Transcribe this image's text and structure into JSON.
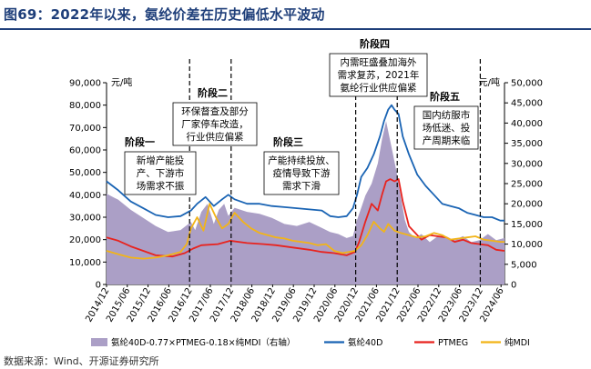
{
  "header": {
    "title": "图69：2022年以来，氨纶价差在历史偏低水平波动",
    "source": "数据来源：Wind、开源证券研究所"
  },
  "chart_data": {
    "type": "line",
    "left_unit": "元/吨",
    "right_unit": "元/吨",
    "ylim_left": [
      0,
      90000
    ],
    "ylim_right": [
      0,
      50000
    ],
    "left_ticks": [
      "0",
      "10,000",
      "20,000",
      "30,000",
      "40,000",
      "50,000",
      "60,000",
      "70,000",
      "80,000",
      "90,000"
    ],
    "right_ticks": [
      "0",
      "5,000",
      "10,000",
      "15,000",
      "20,000",
      "25,000",
      "30,000",
      "35,000",
      "40,000",
      "45,000",
      "50,000"
    ],
    "x_range": [
      2014.917,
      2024.5
    ],
    "x_labels": [
      "2014/12",
      "2015/06",
      "2015/12",
      "2016/06",
      "2016/12",
      "2017/06",
      "2017/12",
      "2018/06",
      "2018/12",
      "2019/06",
      "2019/12",
      "2020/06",
      "2020/12",
      "2021/06",
      "2021/12",
      "2022/06",
      "2022/12",
      "2023/06",
      "2023/12",
      "2024/06"
    ],
    "series": [
      {
        "name": "氨纶40D-0.77×PTMEG-0.18×纯MDI（右轴）",
        "axis": "right",
        "kind": "area",
        "color": "#ab9fc6",
        "x": [
          2014.917,
          2015.2,
          2015.5,
          2015.8,
          2016.1,
          2016.4,
          2016.7,
          2016.95,
          2017.05,
          2017.2,
          2017.35,
          2017.5,
          2017.62,
          2017.75,
          2017.85,
          2018.0,
          2018.3,
          2018.6,
          2018.9,
          2019.2,
          2019.5,
          2019.8,
          2020.1,
          2020.3,
          2020.5,
          2020.7,
          2020.85,
          2020.95,
          2021.05,
          2021.15,
          2021.3,
          2021.45,
          2021.55,
          2021.65,
          2021.72,
          2021.8,
          2021.9,
          2022.0,
          2022.1,
          2022.2,
          2022.35,
          2022.5,
          2022.7,
          2022.9,
          2023.1,
          2023.3,
          2023.5,
          2023.7,
          2023.9,
          2024.1,
          2024.3,
          2024.5
        ],
        "values": [
          22500,
          21000,
          18500,
          16500,
          14500,
          13000,
          13500,
          15500,
          13500,
          18000,
          20000,
          15000,
          18500,
          20000,
          17000,
          19000,
          18000,
          17500,
          16500,
          15000,
          14500,
          15500,
          14000,
          13000,
          12500,
          11500,
          12000,
          16000,
          19000,
          22000,
          25000,
          30000,
          36000,
          40500,
          37000,
          33000,
          28000,
          22000,
          16000,
          13000,
          11500,
          12500,
          10500,
          12000,
          11500,
          11000,
          12000,
          10500,
          11000,
          12500,
          11000,
          11500
        ]
      },
      {
        "name": "氨纶40D",
        "axis": "left",
        "kind": "line",
        "color": "#1a64b4",
        "x": [
          2014.917,
          2015.2,
          2015.5,
          2015.8,
          2016.1,
          2016.4,
          2016.7,
          2016.95,
          2017.1,
          2017.3,
          2017.5,
          2017.7,
          2017.85,
          2018.0,
          2018.3,
          2018.6,
          2018.9,
          2019.2,
          2019.5,
          2019.8,
          2020.1,
          2020.3,
          2020.5,
          2020.7,
          2020.85,
          2020.95,
          2021.05,
          2021.2,
          2021.35,
          2021.5,
          2021.6,
          2021.7,
          2021.78,
          2021.85,
          2021.95,
          2022.05,
          2022.2,
          2022.4,
          2022.6,
          2022.8,
          2023.0,
          2023.2,
          2023.4,
          2023.6,
          2023.8,
          2024.0,
          2024.2,
          2024.4,
          2024.5
        ],
        "values": [
          46000,
          42000,
          37000,
          34000,
          31000,
          30000,
          30500,
          33000,
          36000,
          39000,
          35000,
          38000,
          40000,
          38000,
          36000,
          36000,
          35000,
          34500,
          34000,
          33500,
          33000,
          30500,
          30000,
          30500,
          34000,
          40000,
          48000,
          52000,
          58000,
          66000,
          73000,
          78000,
          80000,
          78000,
          76000,
          66000,
          58000,
          49000,
          44000,
          40000,
          36000,
          35000,
          34000,
          32000,
          31000,
          30000,
          30000,
          28500,
          28500
        ]
      },
      {
        "name": "PTMEG",
        "axis": "left",
        "kind": "line",
        "color": "#e8231e",
        "x": [
          2014.917,
          2015.2,
          2015.5,
          2015.8,
          2016.1,
          2016.5,
          2016.8,
          2017.0,
          2017.2,
          2017.6,
          2017.9,
          2018.3,
          2018.7,
          2019.0,
          2019.4,
          2019.8,
          2020.1,
          2020.4,
          2020.7,
          2020.9,
          2021.0,
          2021.15,
          2021.3,
          2021.45,
          2021.55,
          2021.65,
          2021.75,
          2021.85,
          2021.95,
          2022.05,
          2022.2,
          2022.35,
          2022.5,
          2022.7,
          2022.9,
          2023.1,
          2023.3,
          2023.5,
          2023.7,
          2023.9,
          2024.1,
          2024.3,
          2024.5
        ],
        "values": [
          21000,
          19500,
          17000,
          15000,
          13000,
          12500,
          14000,
          16000,
          17500,
          18000,
          19500,
          18500,
          18000,
          17500,
          16500,
          15500,
          14500,
          14000,
          13000,
          14500,
          19000,
          28000,
          36000,
          33000,
          40000,
          46000,
          47000,
          46000,
          47000,
          37000,
          26000,
          23000,
          20000,
          22000,
          21500,
          21000,
          19000,
          20000,
          18500,
          18000,
          17500,
          15500,
          15000
        ]
      },
      {
        "name": "纯MDI",
        "axis": "left",
        "kind": "line",
        "color": "#f2b418",
        "x": [
          2014.917,
          2015.2,
          2015.5,
          2015.8,
          2016.1,
          2016.4,
          2016.7,
          2016.85,
          2016.95,
          2017.1,
          2017.25,
          2017.4,
          2017.55,
          2017.7,
          2017.85,
          2018.0,
          2018.2,
          2018.4,
          2018.6,
          2018.8,
          2019.0,
          2019.2,
          2019.4,
          2019.6,
          2019.8,
          2020.0,
          2020.2,
          2020.4,
          2020.6,
          2020.75,
          2020.9,
          2021.05,
          2021.2,
          2021.35,
          2021.5,
          2021.6,
          2021.7,
          2021.85,
          2022.0,
          2022.2,
          2022.4,
          2022.6,
          2022.8,
          2023.0,
          2023.2,
          2023.4,
          2023.6,
          2023.8,
          2024.0,
          2024.2,
          2024.4,
          2024.5
        ],
        "values": [
          15000,
          13500,
          12000,
          11500,
          12000,
          13000,
          14500,
          18000,
          25000,
          30000,
          24000,
          36000,
          30000,
          25000,
          27000,
          32000,
          28000,
          25000,
          23000,
          22000,
          21000,
          20500,
          19500,
          19000,
          18500,
          17500,
          18000,
          15000,
          14000,
          14500,
          15000,
          17500,
          22000,
          28000,
          25000,
          23500,
          27000,
          24000,
          23000,
          22000,
          21000,
          21500,
          23000,
          22000,
          20000,
          20500,
          21000,
          21500,
          20000,
          19500,
          19000,
          19000
        ]
      }
    ],
    "stages": [
      {
        "name": "阶段一",
        "lines": [
          "新增产能投",
          "产、下游市",
          "场需求不振"
        ]
      },
      {
        "name": "阶段二",
        "lines": [
          "环保督查及部分",
          "厂家停车改造，",
          "行业供应偏紧"
        ]
      },
      {
        "name": "阶段三",
        "lines": [
          "产能持续投放、",
          "疫情导致下游",
          "需求下滑"
        ]
      },
      {
        "name": "阶段四",
        "lines": [
          "内需旺盛叠加海外",
          "需求复苏，2021年",
          "氨纶行业供应偏紧"
        ]
      },
      {
        "name": "阶段五",
        "lines": [
          "国内纺服市",
          "场低迷、投",
          "产周期来临"
        ]
      }
    ],
    "stage_dividers": [
      2016.917,
      2017.917,
      2020.917,
      2021.917,
      2023.917
    ]
  }
}
